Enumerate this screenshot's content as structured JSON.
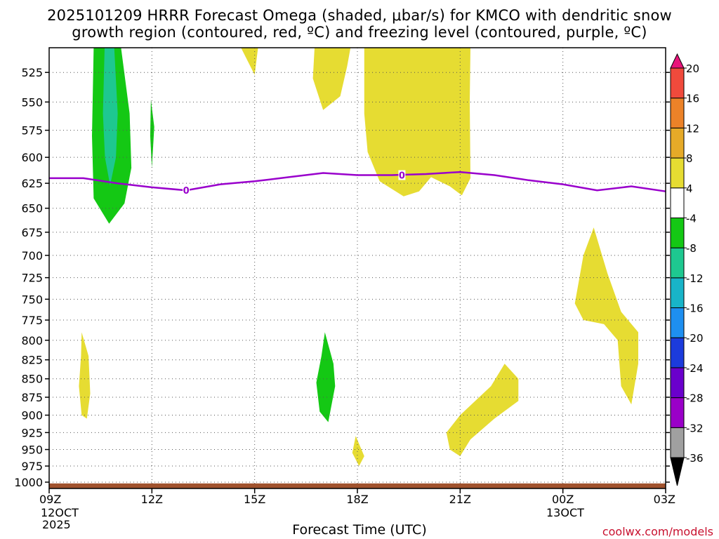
{
  "title_line1": "2025101209 HRRR Forecast Omega (shaded, μbar/s) for KMCO with dendritic snow",
  "title_line2": "growth region (contoured, red, ºC) and freezing level (contoured, purple, ºC)",
  "x_axis_label": "Forecast Time (UTC)",
  "credit": "coolwx.com/models",
  "start_date": {
    "line1": "12OCT",
    "line2": "2025"
  },
  "mid_date": "13OCT",
  "chart_data": {
    "type": "heatmap",
    "description": "Time-height cross section of omega with freezing level contour",
    "x_ticks": [
      {
        "label": "09Z",
        "hour": 0
      },
      {
        "label": "12Z",
        "hour": 3
      },
      {
        "label": "15Z",
        "hour": 6
      },
      {
        "label": "18Z",
        "hour": 9
      },
      {
        "label": "21Z",
        "hour": 12
      },
      {
        "label": "00Z",
        "hour": 15
      },
      {
        "label": "03Z",
        "hour": 18
      }
    ],
    "xlim": [
      0,
      18
    ],
    "ylim": [
      1010,
      505
    ],
    "y_ticks": [
      525,
      550,
      575,
      600,
      625,
      650,
      675,
      700,
      725,
      750,
      775,
      800,
      825,
      850,
      875,
      900,
      925,
      950,
      975,
      1000
    ],
    "freezing_level": {
      "label": "0",
      "color": "#9900cc",
      "points": [
        [
          0,
          620
        ],
        [
          1,
          620
        ],
        [
          2,
          625
        ],
        [
          3,
          629
        ],
        [
          4,
          632
        ],
        [
          5,
          626
        ],
        [
          6,
          623
        ],
        [
          7,
          619
        ],
        [
          8,
          615
        ],
        [
          9,
          617
        ],
        [
          10,
          617
        ],
        [
          11,
          616
        ],
        [
          12,
          614
        ],
        [
          13,
          617
        ],
        [
          14,
          622
        ],
        [
          15,
          626
        ],
        [
          16,
          632
        ],
        [
          17,
          628
        ],
        [
          18,
          633
        ]
      ]
    },
    "colorbar": {
      "levels": [
        -36,
        -32,
        -28,
        -24,
        -20,
        -16,
        -12,
        -8,
        -4,
        4,
        8,
        12,
        16,
        20
      ],
      "colors": [
        "#000000",
        "#a0a0a0",
        "#9a00c8",
        "#6a00cc",
        "#1c3bdc",
        "#1e8ff0",
        "#18b4c8",
        "#1ec890",
        "#14c814",
        "#ffffff",
        "#e6dc32",
        "#e6aa28",
        "#ec8228",
        "#f04a3c",
        "#e8147a"
      ]
    },
    "regions": [
      {
        "name": "upward-motion-core",
        "value_range": [
          -12,
          -8
        ],
        "color": "#1ec890"
      },
      {
        "name": "upward-motion",
        "value_range": [
          -8,
          -4
        ],
        "color": "#14c814"
      },
      {
        "name": "downward-motion",
        "value_range": [
          4,
          8
        ],
        "color": "#e6dc32"
      }
    ],
    "terrain_color": "#a0522d"
  }
}
